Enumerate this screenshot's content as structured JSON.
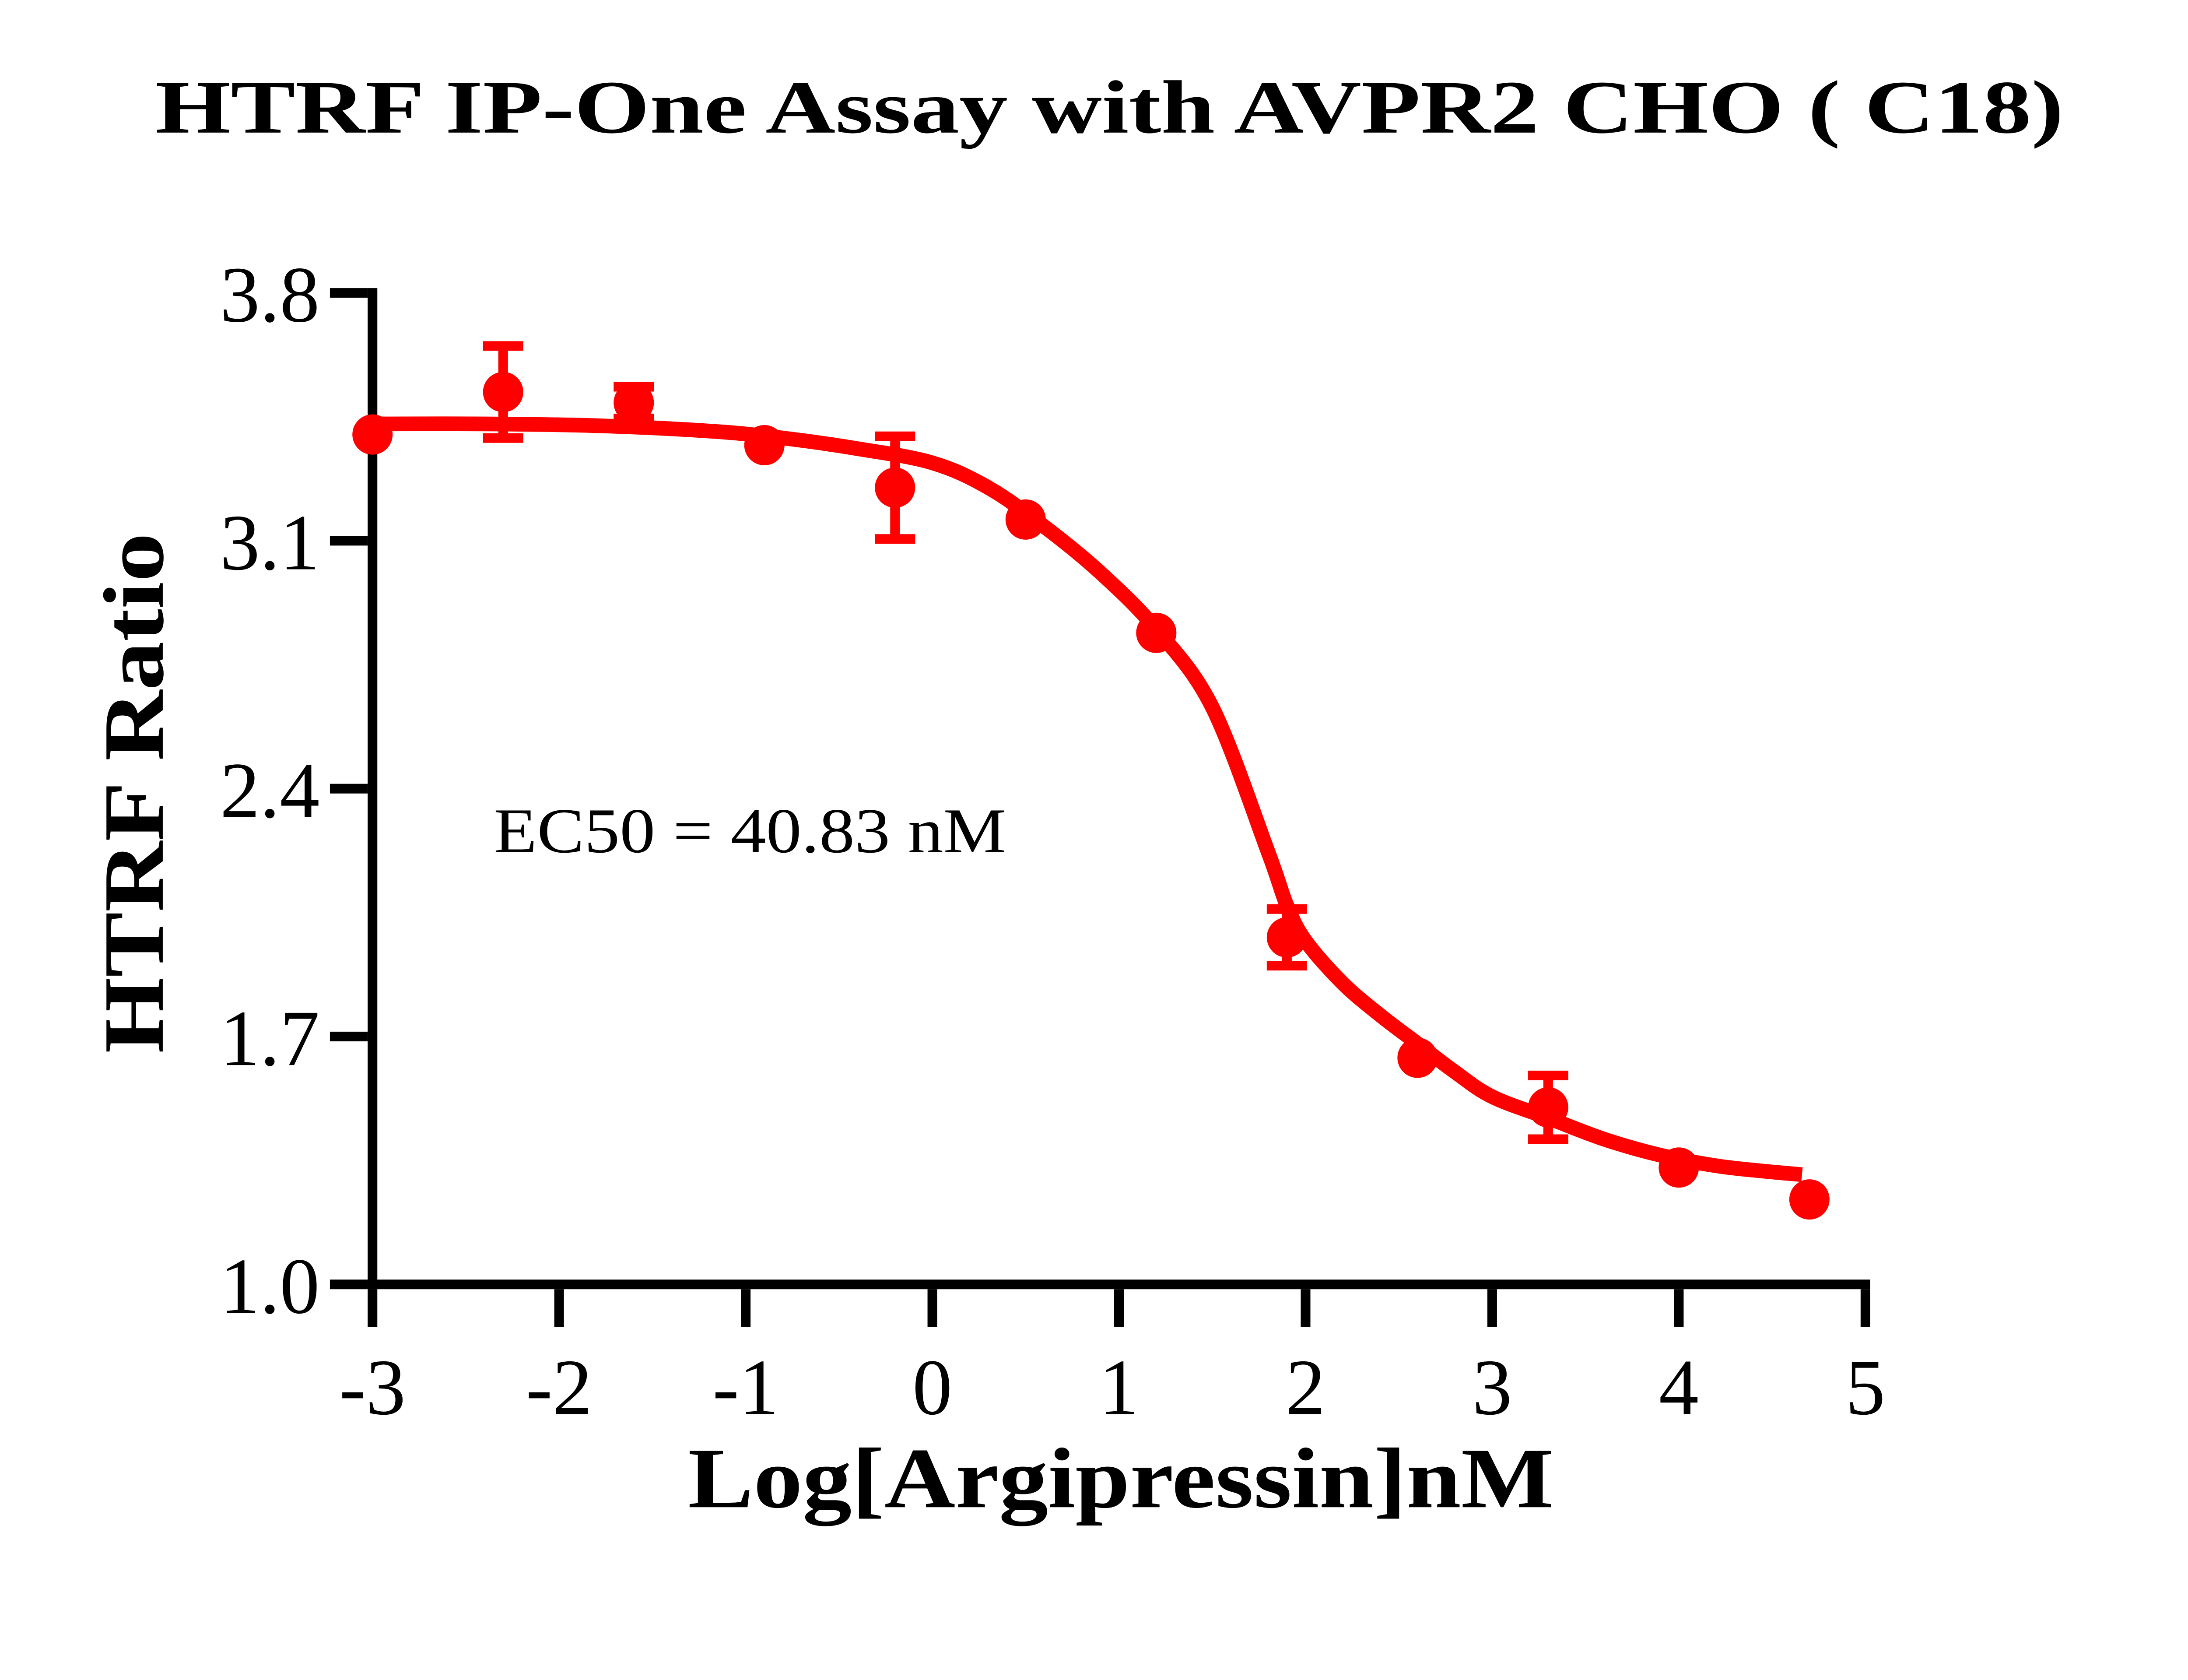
{
  "page": {
    "background_color": "#ffffff"
  },
  "chart_data": {
    "type": "scatter",
    "title": "HTRF IP-One Assay with AVPR2 CHO ( C18)",
    "xlabel": "Log[Argipressin]nM",
    "ylabel": "HTRF Ratio",
    "annotation": {
      "text": "EC50 = 40.83 nM",
      "x": -2.31,
      "y": 2.25
    },
    "ec50_nM": 40.83,
    "xlim": [
      -3,
      5
    ],
    "ylim": [
      1.0,
      3.8
    ],
    "x_ticks": [
      {
        "value": -3,
        "label": "-3"
      },
      {
        "value": -2,
        "label": "-2"
      },
      {
        "value": -1,
        "label": "-1"
      },
      {
        "value": 0,
        "label": "0"
      },
      {
        "value": 1,
        "label": "1"
      },
      {
        "value": 2,
        "label": "2"
      },
      {
        "value": 3,
        "label": "3"
      },
      {
        "value": 4,
        "label": "4"
      },
      {
        "value": 5,
        "label": "5"
      }
    ],
    "y_ticks": [
      {
        "value": 3.8,
        "label": "3.8"
      },
      {
        "value": 3.1,
        "label": "3.1"
      },
      {
        "value": 2.4,
        "label": "2.4"
      },
      {
        "value": 1.7,
        "label": "1.7"
      },
      {
        "value": 1.0,
        "label": "1.0"
      }
    ],
    "grid": false,
    "legend": "none",
    "colors": {
      "series": "#ff0000",
      "axis": "#000000",
      "text": "#000000"
    },
    "series": [
      {
        "name": "Argipressin",
        "marker": "circle",
        "color": "#ff0000",
        "points": [
          {
            "x": -3.0,
            "y": 3.4,
            "sem": 0
          },
          {
            "x": -2.3,
            "y": 3.52,
            "sem": 0.13
          },
          {
            "x": -1.6,
            "y": 3.49,
            "sem": 0.045
          },
          {
            "x": -0.9,
            "y": 3.37,
            "sem": 0
          },
          {
            "x": -0.2,
            "y": 3.25,
            "sem": 0.145
          },
          {
            "x": 0.5,
            "y": 3.16,
            "sem": 0
          },
          {
            "x": 1.2,
            "y": 2.84,
            "sem": 0
          },
          {
            "x": 1.9,
            "y": 1.98,
            "sem": 0.08
          },
          {
            "x": 2.6,
            "y": 1.64,
            "sem": 0
          },
          {
            "x": 3.3,
            "y": 1.5,
            "sem": 0.09
          },
          {
            "x": 4.0,
            "y": 1.33,
            "sem": 0
          },
          {
            "x": 4.7,
            "y": 1.24,
            "sem": 0
          }
        ],
        "fit_curve": [
          [
            -3.0,
            3.43
          ],
          [
            -2.4,
            3.43
          ],
          [
            -1.8,
            3.425
          ],
          [
            -1.2,
            3.41
          ],
          [
            -0.8,
            3.39
          ],
          [
            -0.4,
            3.36
          ],
          [
            0.0,
            3.32
          ],
          [
            0.3,
            3.25
          ],
          [
            0.6,
            3.14
          ],
          [
            0.9,
            3.01
          ],
          [
            1.2,
            2.85
          ],
          [
            1.5,
            2.63
          ],
          [
            1.8,
            2.22
          ],
          [
            1.9,
            2.07
          ],
          [
            2.0,
            1.97
          ],
          [
            2.2,
            1.85
          ],
          [
            2.4,
            1.76
          ],
          [
            2.6,
            1.68
          ],
          [
            2.8,
            1.6
          ],
          [
            3.0,
            1.53
          ],
          [
            3.3,
            1.47
          ],
          [
            3.6,
            1.41
          ],
          [
            3.9,
            1.365
          ],
          [
            4.2,
            1.335
          ],
          [
            4.45,
            1.32
          ],
          [
            4.66,
            1.31
          ]
        ]
      }
    ]
  }
}
